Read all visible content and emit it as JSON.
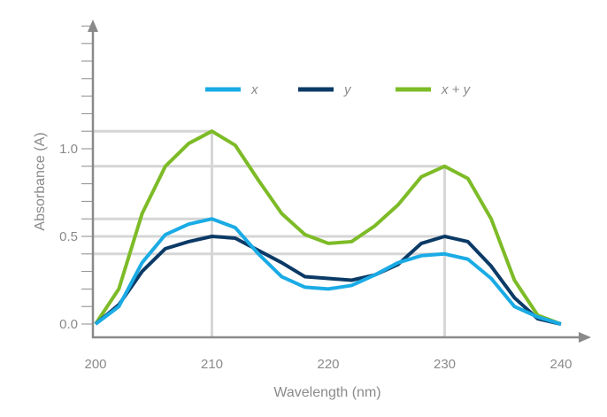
{
  "chart_data": {
    "type": "line",
    "xlabel": "Wavelength (nm)",
    "ylabel": "Absorbance (A)",
    "xlim": [
      200,
      240
    ],
    "ylim": [
      0,
      1.7
    ],
    "xticks": [
      "200",
      "210",
      "220",
      "230",
      "240"
    ],
    "xtick_values": [
      200,
      210,
      220,
      230,
      240
    ],
    "yticks": [
      "0.0",
      "0.5",
      "1.0"
    ],
    "ytick_values": [
      0,
      0.5,
      1.0
    ],
    "legend_placement": "top",
    "x": [
      200,
      202,
      204,
      206,
      208,
      210,
      212,
      214,
      216,
      218,
      220,
      222,
      224,
      226,
      228,
      230,
      232,
      234,
      236,
      238,
      240
    ],
    "series": [
      {
        "name": "x",
        "color": "#1aabe5",
        "values": [
          0,
          0.1,
          0.35,
          0.51,
          0.57,
          0.6,
          0.55,
          0.4,
          0.27,
          0.21,
          0.2,
          0.22,
          0.28,
          0.35,
          0.39,
          0.4,
          0.37,
          0.26,
          0.1,
          0.04,
          0
        ]
      },
      {
        "name": "y",
        "color": "#0b3a66",
        "values": [
          0,
          0.11,
          0.3,
          0.43,
          0.47,
          0.5,
          0.49,
          0.42,
          0.35,
          0.27,
          0.26,
          0.25,
          0.28,
          0.34,
          0.46,
          0.5,
          0.47,
          0.33,
          0.15,
          0.03,
          0
        ]
      },
      {
        "name": "x + y",
        "color": "#7dbb27",
        "values": [
          0,
          0.2,
          0.63,
          0.9,
          1.03,
          1.1,
          1.02,
          0.82,
          0.63,
          0.51,
          0.46,
          0.47,
          0.56,
          0.68,
          0.84,
          0.9,
          0.83,
          0.6,
          0.25,
          0.05,
          0
        ]
      }
    ],
    "reference_lines": [
      {
        "y": 1.1,
        "x": 210
      },
      {
        "y": 0.6,
        "x": 210
      },
      {
        "y": 0.9,
        "x": 230
      },
      {
        "y": 0.5,
        "x": 230
      },
      {
        "y": 0.4,
        "x": 230
      }
    ]
  }
}
